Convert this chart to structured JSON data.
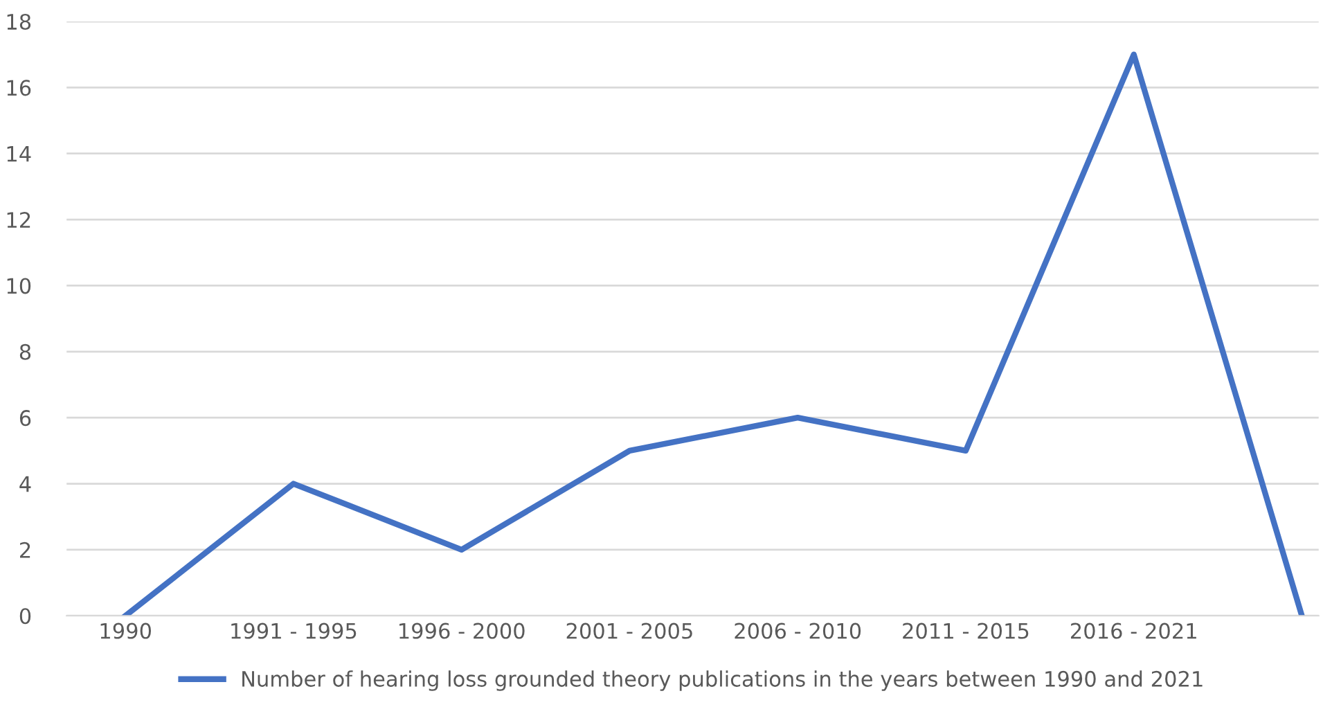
{
  "chart_data": {
    "type": "line",
    "categories": [
      "1990",
      "1991 - 1995",
      "1996 - 2000",
      "2001 - 2005",
      "2006 - 2010",
      "2011 - 2015",
      "2016 - 2021",
      null
    ],
    "series": [
      {
        "name": "Number of hearing loss grounded theory publications in the years between 1990 and 2021",
        "color": "#4472c4",
        "values": [
          0,
          4,
          2,
          5,
          6,
          5,
          17,
          0
        ]
      }
    ],
    "ylim": [
      0,
      18
    ],
    "yticks": [
      0,
      2,
      4,
      6,
      8,
      10,
      12,
      14,
      16,
      18
    ],
    "grid": "y",
    "legend": "bottom",
    "marker": "none",
    "line_style": "solid"
  }
}
